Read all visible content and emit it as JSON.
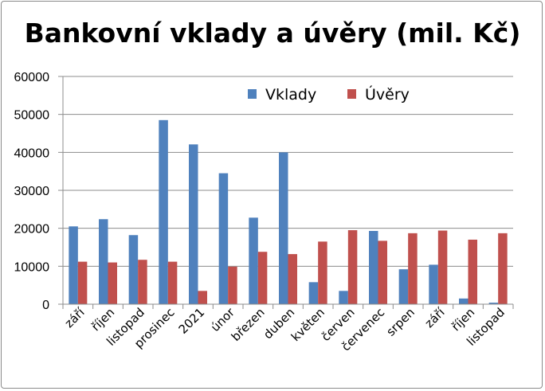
{
  "chart_data": {
    "type": "bar",
    "title": "Bankovní vklady a úvěry (mil. Kč)",
    "xlabel": "",
    "ylabel": "",
    "ylim": [
      0,
      60000
    ],
    "yticks": [
      "0",
      "10000",
      "20000",
      "30000",
      "40000",
      "50000",
      "60000"
    ],
    "grid": true,
    "legend_position": "top-right",
    "categories": [
      "září",
      "říjen",
      "listopad",
      "prosinec",
      "2021",
      "únor",
      "březen",
      "duben",
      "květen",
      "červen",
      "červenec",
      "srpen",
      "září",
      "říjen",
      "listopad"
    ],
    "series": [
      {
        "name": "Vklady",
        "color": "#4f81bd",
        "values": [
          20500,
          22400,
          18200,
          48500,
          42100,
          34500,
          22800,
          40000,
          5800,
          3500,
          19300,
          9200,
          10400,
          1500,
          400
        ]
      },
      {
        "name": "Úvěry",
        "color": "#c0504d",
        "values": [
          11200,
          11000,
          11700,
          11200,
          3500,
          9900,
          13800,
          13200,
          16500,
          19500,
          16700,
          18700,
          19400,
          17000,
          18700
        ]
      }
    ]
  }
}
